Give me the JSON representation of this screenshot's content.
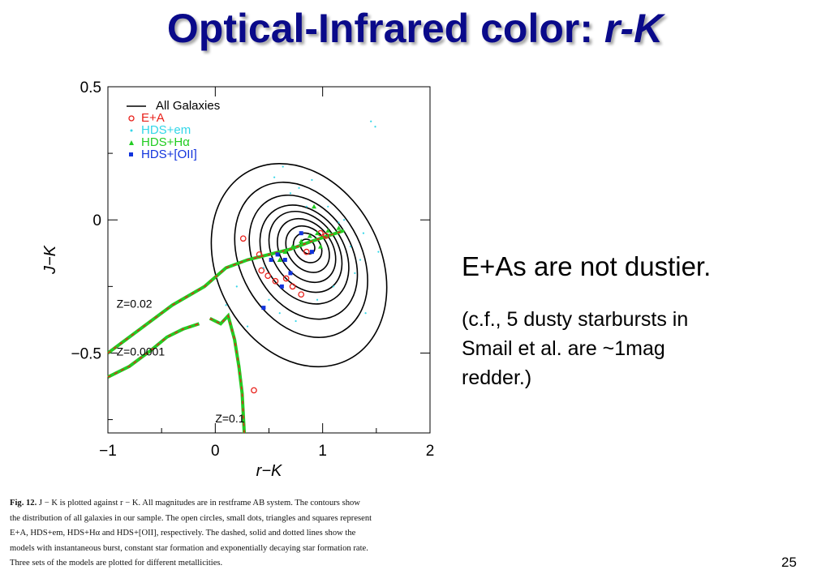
{
  "title": {
    "main": "Optical-Infrared color: ",
    "italic": "r-K"
  },
  "side_text": {
    "main": "E+As are not dustier.",
    "note_lines": [
      "(c.f., 5 dusty starbursts in",
      "Smail et al. are ~1mag",
      "redder.)"
    ]
  },
  "caption": {
    "label": "Fig. 12.",
    "first_line": "J − K is plotted against r − K. All magnitudes are in restframe AB system. The contours show",
    "lines": [
      "the distribution of all galaxies in our sample. The open circles, small dots, triangles and squares represent",
      "E+A, HDS+em, HDS+Hα and HDS+[OII], respectively. The dashed, solid and dotted lines show the",
      "models with instantaneous burst, constant star formation and exponentially decaying star formation rate.",
      "Three sets of the models are plotted for different metallicities."
    ]
  },
  "page_number": "25",
  "chart_data": {
    "type": "scatter",
    "xlabel": "r−K",
    "ylabel": "J−K",
    "xlim": [
      -1,
      2
    ],
    "ylim": [
      -0.8,
      0.5
    ],
    "xticks": [
      -1,
      0,
      1,
      2
    ],
    "xtick_labels": [
      "−1",
      "0",
      "1",
      "2"
    ],
    "yticks": [
      0.5,
      0,
      -0.5
    ],
    "ytick_labels": [
      "0.5",
      "0",
      "−0.5"
    ],
    "legend_position": "top-left",
    "legend": [
      {
        "label": "All Galaxies",
        "marker": "line",
        "color": "#000000"
      },
      {
        "label": "E+A",
        "marker": "circle",
        "color": "#e8201a"
      },
      {
        "label": "HDS+em",
        "marker": "dot",
        "color": "#33d6e8"
      },
      {
        "label": "HDS+Hα",
        "marker": "triangle",
        "color": "#22cc22"
      },
      {
        "label": "HDS+[OII]",
        "marker": "square",
        "color": "#1133dd"
      }
    ],
    "annotations": [
      {
        "text": "Z=0.02",
        "x": -0.92,
        "y": -0.33
      },
      {
        "text": "Z=0.0001",
        "x": -0.92,
        "y": -0.51
      },
      {
        "text": "Z=0.1",
        "x": 0.0,
        "y": -0.76
      }
    ],
    "contours": [
      {
        "cx": 0.78,
        "cy": -0.17,
        "rx": 0.76,
        "ry": 0.4,
        "rot": -28
      },
      {
        "cx": 0.8,
        "cy": -0.15,
        "rx": 0.56,
        "ry": 0.31,
        "rot": -30
      },
      {
        "cx": 0.82,
        "cy": -0.14,
        "rx": 0.45,
        "ry": 0.25,
        "rot": -32
      },
      {
        "cx": 0.83,
        "cy": -0.13,
        "rx": 0.37,
        "ry": 0.2,
        "rot": -34
      },
      {
        "cx": 0.84,
        "cy": -0.12,
        "rx": 0.3,
        "ry": 0.165,
        "rot": -35
      },
      {
        "cx": 0.85,
        "cy": -0.115,
        "rx": 0.24,
        "ry": 0.13,
        "rot": -36
      },
      {
        "cx": 0.86,
        "cy": -0.11,
        "rx": 0.18,
        "ry": 0.095,
        "rot": -38
      },
      {
        "cx": 0.86,
        "cy": -0.105,
        "rx": 0.12,
        "ry": 0.06,
        "rot": -40
      },
      {
        "cx": 0.86,
        "cy": -0.1,
        "rx": 0.06,
        "ry": 0.03,
        "rot": -42
      }
    ],
    "models": [
      {
        "name": "Z=0.02",
        "x": [
          -1.0,
          -0.7,
          -0.4,
          -0.1,
          0.1,
          0.3,
          0.5,
          0.7,
          0.9,
          1.2
        ],
        "y": [
          -0.5,
          -0.41,
          -0.32,
          -0.25,
          -0.18,
          -0.15,
          -0.13,
          -0.11,
          -0.08,
          -0.04
        ]
      },
      {
        "name": "Z=0.0001",
        "x": [
          -1.0,
          -0.8,
          -0.6,
          -0.45,
          -0.3,
          -0.15
        ],
        "y": [
          -0.59,
          -0.55,
          -0.49,
          -0.44,
          -0.41,
          -0.39
        ]
      },
      {
        "name": "Z=0.1",
        "x": [
          -0.05,
          0.05,
          0.12,
          0.18,
          0.22,
          0.25,
          0.27
        ],
        "y": [
          -0.37,
          -0.39,
          -0.36,
          -0.45,
          -0.55,
          -0.65,
          -0.8
        ]
      }
    ],
    "series": [
      {
        "name": "E+A",
        "marker": "circle",
        "color": "#e8201a",
        "x": [
          0.26,
          0.41,
          0.43,
          0.49,
          0.56,
          0.66,
          0.72,
          0.8,
          0.85,
          1.03,
          0.98,
          0.36
        ],
        "y": [
          -0.07,
          -0.13,
          -0.19,
          -0.21,
          -0.23,
          -0.22,
          -0.25,
          -0.28,
          -0.12,
          -0.06,
          -0.05,
          -0.64
        ]
      },
      {
        "name": "HDS+em",
        "marker": "dot",
        "color": "#33d6e8",
        "x": [
          1.45,
          1.49,
          0.55,
          0.63,
          0.7,
          0.78,
          0.9,
          1.05,
          1.15,
          1.26,
          1.35,
          0.45,
          0.5,
          0.6,
          0.95,
          1.1,
          1.38,
          1.3,
          0.2,
          0.3,
          1.52,
          1.4,
          0.85,
          0.75,
          1.2,
          0.1
        ],
        "y": [
          0.37,
          0.35,
          0.16,
          0.2,
          0.1,
          0.12,
          0.15,
          0.05,
          -0.01,
          -0.1,
          -0.15,
          -0.18,
          -0.3,
          -0.35,
          -0.3,
          -0.25,
          -0.05,
          -0.2,
          -0.25,
          -0.4,
          -0.12,
          -0.35,
          0.05,
          -0.38,
          0.0,
          -0.32
        ]
      },
      {
        "name": "HDS+Hα",
        "marker": "triangle",
        "color": "#22cc22",
        "x": [
          0.6,
          0.65,
          0.72,
          0.8,
          0.88,
          0.95,
          1.05,
          1.15,
          0.92,
          0.98
        ],
        "y": [
          -0.15,
          -0.12,
          -0.1,
          -0.08,
          -0.06,
          -0.05,
          -0.04,
          -0.03,
          0.05,
          -0.1
        ]
      },
      {
        "name": "HDS+[OII]",
        "marker": "square",
        "color": "#1133dd",
        "x": [
          0.45,
          0.52,
          0.58,
          0.65,
          0.7,
          0.9,
          0.8,
          0.62
        ],
        "y": [
          -0.33,
          -0.15,
          -0.13,
          -0.15,
          -0.2,
          -0.12,
          -0.05,
          -0.25
        ]
      }
    ]
  }
}
